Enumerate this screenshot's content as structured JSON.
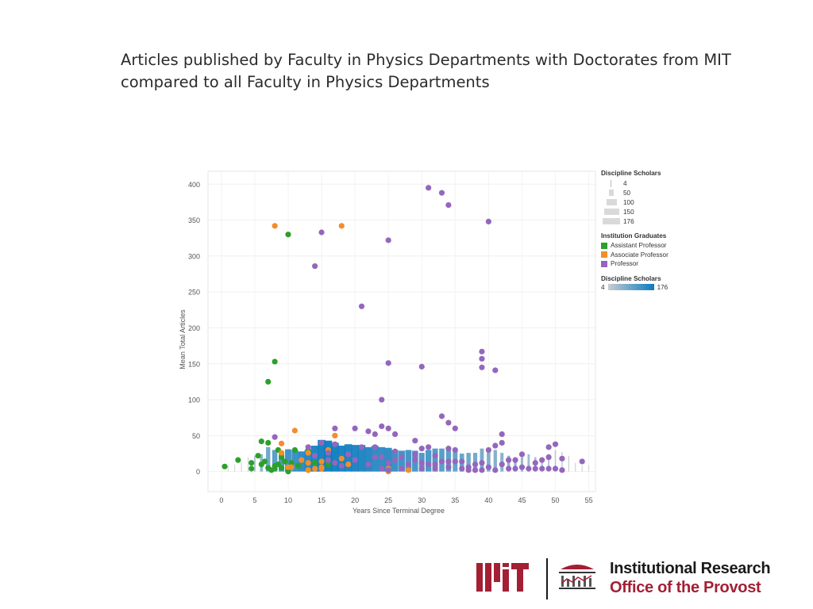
{
  "slide": {
    "title": "Articles published by Faculty in Physics Departments with Doctorates from MIT compared to all Faculty in Physics Departments"
  },
  "branding": {
    "org_line1": "Institutional Research",
    "org_line2": "Office of the Provost",
    "logo_text": "MIT",
    "brand_color": "#a31f34"
  },
  "legend": {
    "size_title": "Discipline Scholars",
    "size_items": [
      "4",
      "50",
      "100",
      "150",
      "176"
    ],
    "color_title": "Institution Graduates",
    "color_items": [
      {
        "label": "Assistant Professor",
        "color": "#2ca02c"
      },
      {
        "label": "Associate Professor",
        "color": "#f28e2b"
      },
      {
        "label": "Professor",
        "color": "#9467bd"
      }
    ],
    "gradient_title": "Discipline Scholars",
    "gradient_min": "4",
    "gradient_max": "176"
  },
  "chart_data": {
    "type": "scatter",
    "xlabel": "Years Since Terminal Degree",
    "ylabel": "Mean Total Articles",
    "xlim": [
      -2,
      56
    ],
    "ylim": [
      -28,
      418
    ],
    "x_ticks": [
      0,
      5,
      10,
      15,
      20,
      25,
      30,
      35,
      40,
      45,
      50,
      55
    ],
    "y_ticks": [
      0,
      50,
      100,
      150,
      200,
      250,
      300,
      350,
      400
    ],
    "grid": true,
    "legend_position": "right",
    "bars": {
      "name": "Discipline Scholars",
      "gradient_from": "#c9ccd0",
      "gradient_to": "#0a7bbf",
      "x": [
        1,
        2,
        3,
        4,
        5,
        6,
        7,
        8,
        9,
        10,
        11,
        12,
        13,
        14,
        15,
        16,
        17,
        18,
        19,
        20,
        21,
        22,
        23,
        24,
        25,
        26,
        27,
        28,
        29,
        30,
        31,
        32,
        33,
        34,
        35,
        36,
        37,
        38,
        39,
        40,
        41,
        42,
        43,
        44,
        45,
        46,
        47,
        48,
        49,
        50,
        51,
        52,
        53,
        54,
        55
      ],
      "y": [
        8,
        10,
        14,
        20,
        22,
        24,
        34,
        30,
        28,
        31,
        30,
        28,
        30,
        36,
        44,
        43,
        40,
        36,
        38,
        37,
        37,
        34,
        36,
        34,
        33,
        30,
        29,
        30,
        29,
        26,
        30,
        32,
        32,
        31,
        28,
        25,
        26,
        26,
        32,
        28,
        30,
        26,
        22,
        20,
        20,
        24,
        20,
        18,
        20,
        30,
        27,
        22,
        12,
        8,
        9
      ],
      "scholars": [
        4,
        4,
        6,
        8,
        30,
        60,
        90,
        110,
        120,
        135,
        140,
        150,
        160,
        165,
        172,
        176,
        174,
        170,
        168,
        166,
        162,
        158,
        150,
        148,
        150,
        140,
        135,
        132,
        128,
        120,
        125,
        118,
        112,
        108,
        100,
        95,
        90,
        86,
        80,
        76,
        70,
        66,
        60,
        54,
        50,
        46,
        40,
        34,
        28,
        22,
        18,
        14,
        10,
        7,
        4
      ]
    },
    "series": [
      {
        "name": "Assistant Professor",
        "color": "#2ca02c",
        "points": [
          [
            0.5,
            7
          ],
          [
            2.5,
            16
          ],
          [
            4.5,
            4
          ],
          [
            4.5,
            12
          ],
          [
            5.5,
            22
          ],
          [
            6,
            10
          ],
          [
            6,
            42
          ],
          [
            6.5,
            14
          ],
          [
            7,
            5
          ],
          [
            7,
            40
          ],
          [
            7,
            125
          ],
          [
            7.5,
            2
          ],
          [
            8,
            4
          ],
          [
            8,
            8
          ],
          [
            8,
            153
          ],
          [
            8.5,
            10
          ],
          [
            8.5,
            30
          ],
          [
            9,
            5
          ],
          [
            9,
            20
          ],
          [
            9.5,
            14
          ],
          [
            10,
            0
          ],
          [
            10,
            330
          ],
          [
            10.5,
            12
          ],
          [
            11,
            30
          ],
          [
            11.5,
            8
          ],
          [
            13,
            2
          ],
          [
            13,
            30
          ],
          [
            14,
            12
          ],
          [
            15,
            6
          ],
          [
            16,
            10
          ]
        ]
      },
      {
        "name": "Associate Professor",
        "color": "#f28e2b",
        "points": [
          [
            8,
            342
          ],
          [
            9,
            26
          ],
          [
            9,
            39
          ],
          [
            10,
            6
          ],
          [
            10.5,
            6
          ],
          [
            11,
            57
          ],
          [
            12,
            16
          ],
          [
            13,
            2
          ],
          [
            13,
            12
          ],
          [
            13,
            26
          ],
          [
            14,
            4
          ],
          [
            15,
            4
          ],
          [
            15,
            6
          ],
          [
            15,
            14
          ],
          [
            16,
            30
          ],
          [
            17,
            50
          ],
          [
            18,
            342
          ],
          [
            18,
            18
          ],
          [
            19,
            10
          ],
          [
            25,
            4
          ],
          [
            25,
            0
          ],
          [
            28,
            2
          ]
        ]
      },
      {
        "name": "Professor",
        "color": "#9467bd",
        "points": [
          [
            8,
            48
          ],
          [
            13,
            34
          ],
          [
            14,
            286
          ],
          [
            14,
            22
          ],
          [
            15,
            333
          ],
          [
            15,
            40
          ],
          [
            16,
            26
          ],
          [
            16,
            16
          ],
          [
            17,
            38
          ],
          [
            17,
            60
          ],
          [
            17,
            12
          ],
          [
            18,
            8
          ],
          [
            19,
            24
          ],
          [
            20,
            60
          ],
          [
            20,
            16
          ],
          [
            21,
            230
          ],
          [
            21,
            34
          ],
          [
            22,
            56
          ],
          [
            22,
            10
          ],
          [
            23,
            52
          ],
          [
            23,
            20
          ],
          [
            23,
            34
          ],
          [
            24,
            100
          ],
          [
            24,
            63
          ],
          [
            24,
            20
          ],
          [
            24,
            4
          ],
          [
            25,
            322
          ],
          [
            25,
            151
          ],
          [
            25,
            60
          ],
          [
            25,
            12
          ],
          [
            25,
            2
          ],
          [
            26,
            52
          ],
          [
            26,
            28
          ],
          [
            26,
            16
          ],
          [
            27,
            20
          ],
          [
            27,
            4
          ],
          [
            28,
            10
          ],
          [
            29,
            43
          ],
          [
            29,
            24
          ],
          [
            29,
            16
          ],
          [
            30,
            146
          ],
          [
            30,
            32
          ],
          [
            30,
            12
          ],
          [
            30,
            4
          ],
          [
            31,
            395
          ],
          [
            31,
            34
          ],
          [
            31,
            10
          ],
          [
            32,
            22
          ],
          [
            32,
            10
          ],
          [
            32,
            4
          ],
          [
            33,
            388
          ],
          [
            33,
            77
          ],
          [
            33,
            14
          ],
          [
            34,
            371
          ],
          [
            34,
            68
          ],
          [
            34,
            32
          ],
          [
            34,
            14
          ],
          [
            34,
            6
          ],
          [
            35,
            60
          ],
          [
            35,
            30
          ],
          [
            35,
            14
          ],
          [
            36,
            14
          ],
          [
            36,
            4
          ],
          [
            37,
            6
          ],
          [
            37,
            2
          ],
          [
            38,
            10
          ],
          [
            38,
            2
          ],
          [
            39,
            167
          ],
          [
            39,
            157
          ],
          [
            39,
            145
          ],
          [
            39,
            12
          ],
          [
            39,
            2
          ],
          [
            40,
            348
          ],
          [
            40,
            30
          ],
          [
            40,
            6
          ],
          [
            41,
            141
          ],
          [
            41,
            36
          ],
          [
            41,
            2
          ],
          [
            42,
            52
          ],
          [
            42,
            40
          ],
          [
            42,
            10
          ],
          [
            43,
            16
          ],
          [
            43,
            4
          ],
          [
            44,
            16
          ],
          [
            44,
            4
          ],
          [
            45,
            24
          ],
          [
            45,
            6
          ],
          [
            46,
            4
          ],
          [
            47,
            12
          ],
          [
            47,
            4
          ],
          [
            48,
            16
          ],
          [
            48,
            4
          ],
          [
            49,
            34
          ],
          [
            49,
            20
          ],
          [
            49,
            4
          ],
          [
            50,
            38
          ],
          [
            50,
            4
          ],
          [
            51,
            18
          ],
          [
            51,
            2
          ],
          [
            54,
            14
          ]
        ]
      }
    ]
  }
}
